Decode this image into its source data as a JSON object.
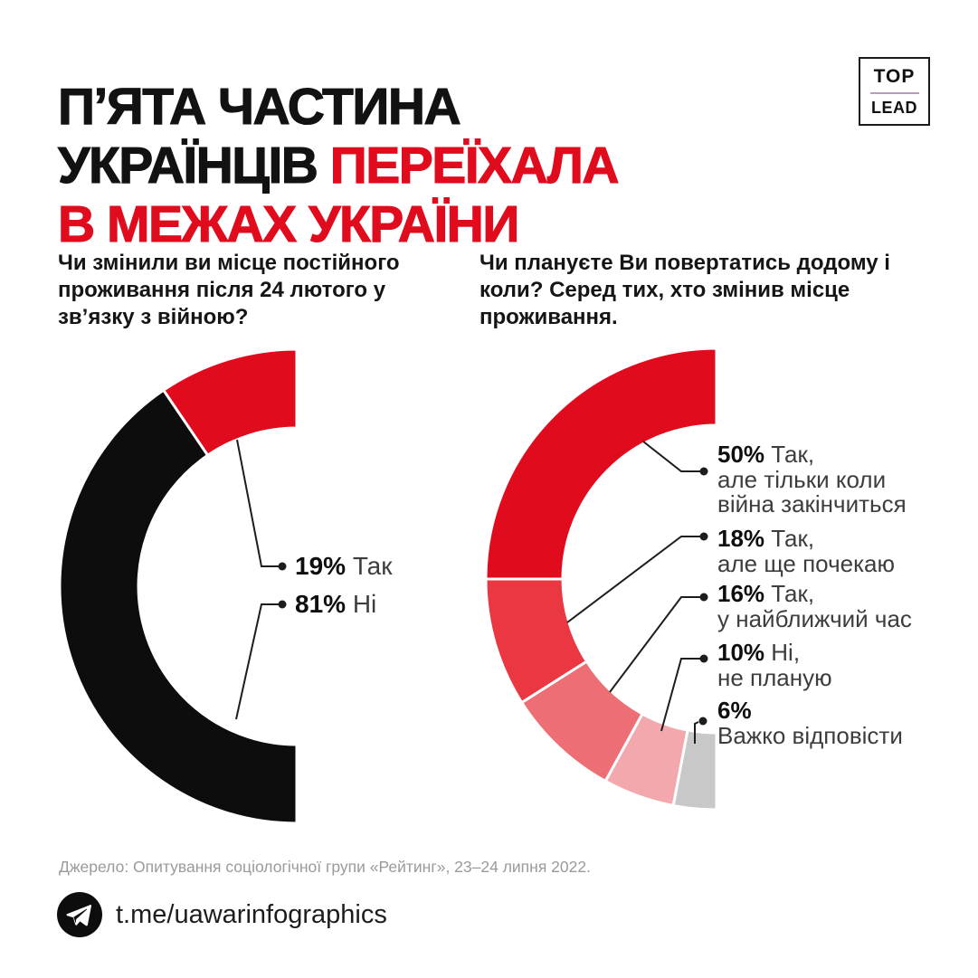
{
  "header": {
    "title_line1": "П’ЯТА ЧАСТИНА",
    "title_line2_black": "УКРАЇНЦІВ",
    "title_line2_red": "ПЕРЕЇХАЛА",
    "title_line3": "В МЕЖАХ УКРАЇНИ",
    "accent_color": "#e00c1e",
    "logo": {
      "line1": "TOP",
      "line2": "LEAD",
      "divider_color": "#b79dc0"
    }
  },
  "chart_data": [
    {
      "type": "donut",
      "shape": "half-ring, 180° arc from top through left to bottom, open to the right",
      "question": "Чи змінили ви місце постійного проживання після 24 лютого у зв’язку з війною?",
      "segments": [
        {
          "value": 19,
          "label": "Так",
          "label_lines": [
            "Так"
          ],
          "color": "#e00c1e"
        },
        {
          "value": 81,
          "label": "Ні",
          "label_lines": [
            "Ні"
          ],
          "color": "#0d0d0d"
        }
      ]
    },
    {
      "type": "donut",
      "shape": "half-ring, 180° arc from top through left to bottom, open to the right",
      "question": "Чи плануєте Ви повертатись додому і коли? Серед тих, хто змінив місце проживання.",
      "segments": [
        {
          "value": 50,
          "label": "Так, але тільки коли війна закінчиться",
          "label_lines": [
            "Так,",
            "але тільки коли",
            "війна закінчиться"
          ],
          "color": "#e00c1e"
        },
        {
          "value": 18,
          "label": "Так, але ще почекаю",
          "label_lines": [
            "Так,",
            "але ще почекаю"
          ],
          "color": "#ea3742"
        },
        {
          "value": 16,
          "label": "Так, у найближчий час",
          "label_lines": [
            "Так,",
            "у найближчий час"
          ],
          "color": "#ee6e76"
        },
        {
          "value": 10,
          "label": "Ні, не планую",
          "label_lines": [
            "Ні,",
            "не планую"
          ],
          "color": "#f3a8ae"
        },
        {
          "value": 6,
          "label": "Важко відповісти",
          "label_lines": [
            "",
            "Важко відповісти"
          ],
          "color": "#c8c8c8"
        }
      ]
    }
  ],
  "footer": {
    "source": "Джерело: Опитування соціологічної групи «Рейтинг», 23–24 липня 2022.",
    "telegram": "t.me/uawarinfographics"
  }
}
